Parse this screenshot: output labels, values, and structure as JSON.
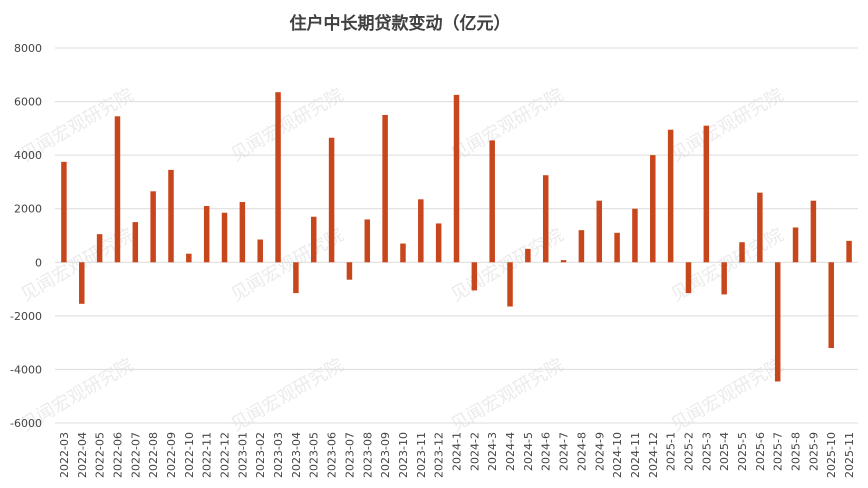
{
  "chart_data": {
    "type": "bar",
    "title": "住户中长期贷款变动（亿元）",
    "watermark": "见闻宏观研究院",
    "bar_color": "#C8461C",
    "ylim": [
      -6000,
      8000
    ],
    "yticks": [
      -6000,
      -4000,
      -2000,
      0,
      2000,
      4000,
      6000,
      8000
    ],
    "grid": true,
    "legend": "none",
    "categories": [
      "2022-03",
      "2022-04",
      "2022-05",
      "2022-06",
      "2022-07",
      "2022-08",
      "2022-09",
      "2022-10",
      "2022-11",
      "2022-12",
      "2023-01",
      "2023-02",
      "2023-03",
      "2023-04",
      "2023-05",
      "2023-06",
      "2023-07",
      "2023-08",
      "2023-09",
      "2023-10",
      "2023-11",
      "2023-12",
      "2024-1",
      "2024-2",
      "2024-3",
      "2024-4",
      "2024-5",
      "2024-6",
      "2024-7",
      "2024-8",
      "2024-9",
      "2024-10",
      "2024-11",
      "2024-12",
      "2025-1",
      "2025-2",
      "2025-3",
      "2025-4",
      "2025-5",
      "2025-6",
      "2025-7",
      "2025-8",
      "2025-9",
      "2025-10",
      "2025-11"
    ],
    "values": [
      3750,
      -1550,
      1050,
      5450,
      1500,
      2650,
      3450,
      320,
      2100,
      1850,
      2250,
      850,
      6350,
      -1150,
      1700,
      4650,
      -650,
      1600,
      5500,
      700,
      2350,
      1450,
      6250,
      -1050,
      4550,
      -1650,
      500,
      3250,
      80,
      1200,
      2300,
      1100,
      2000,
      4000,
      4950,
      -1150,
      5100,
      -1200,
      750,
      2600,
      -4450,
      1300,
      2300,
      -3200,
      800
    ]
  }
}
